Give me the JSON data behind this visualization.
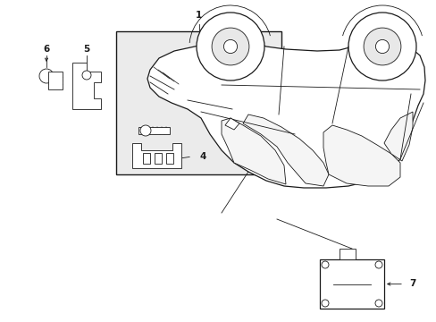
{
  "bg_color": "#ffffff",
  "line_color": "#1a1a1a",
  "box_bg": "#ebebeb",
  "figsize": [
    4.89,
    3.6
  ],
  "dpi": 100,
  "xlim": [
    0,
    489
  ],
  "ylim": [
    0,
    360
  ]
}
